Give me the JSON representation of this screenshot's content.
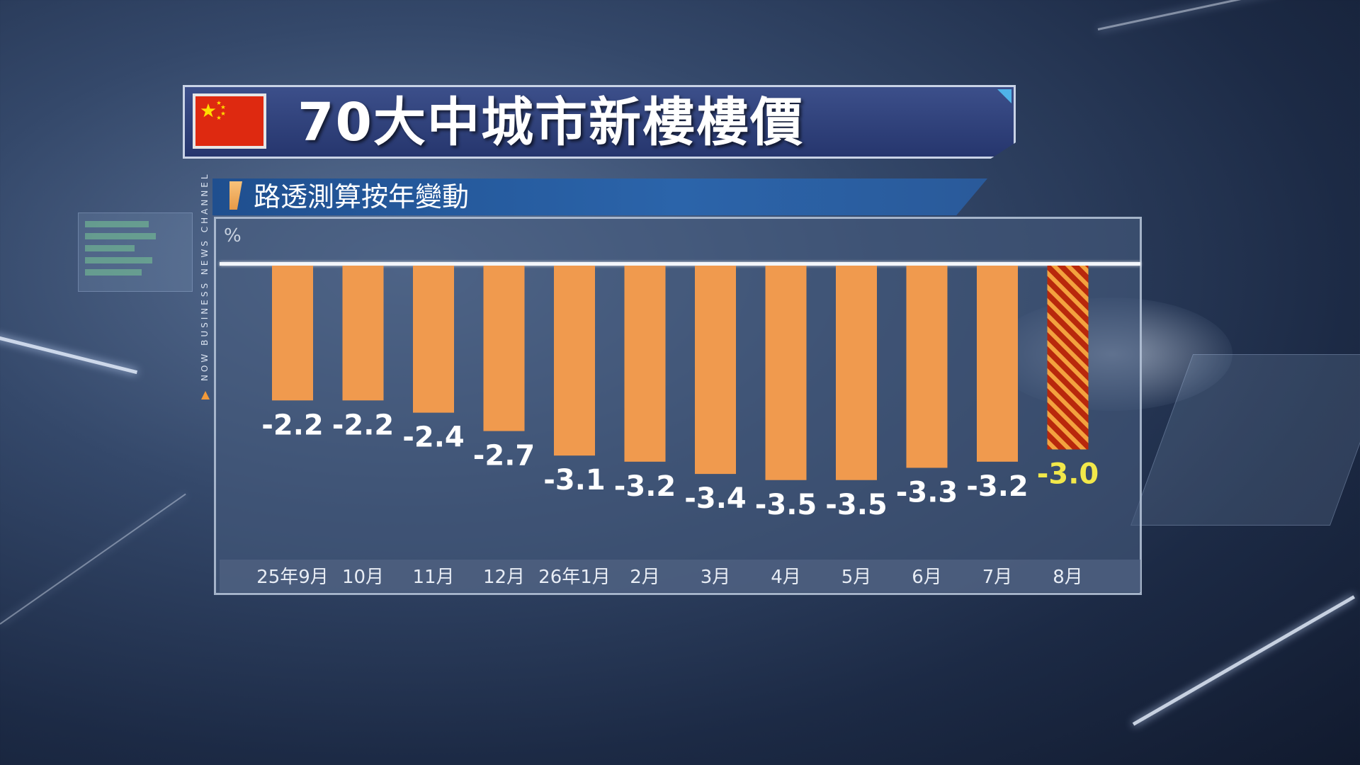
{
  "title": "70大中城市新樓樓價",
  "subtitle": "路透測算按年變動",
  "channel": "NOW BUSINESS NEWS CHANNEL",
  "colors": {
    "bar": "#f09a4e",
    "highlight_bar": "#b8280c",
    "highlight_stripe": "#f3a23e",
    "highlight_label": "#f2e84a"
  },
  "chart_data": {
    "type": "bar",
    "title": "70大中城市新樓樓價",
    "subtitle": "路透測算按年變動",
    "ylabel": "%",
    "xlabel": "",
    "categories": [
      "25年9月",
      "10月",
      "11月",
      "12月",
      "26年1月",
      "2月",
      "3月",
      "4月",
      "5月",
      "6月",
      "7月",
      "8月"
    ],
    "values": [
      -2.2,
      -2.2,
      -2.4,
      -2.7,
      -3.1,
      -3.2,
      -3.4,
      -3.5,
      -3.5,
      -3.3,
      -3.2,
      -3.0
    ],
    "value_labels": [
      "-2.2",
      "-2.2",
      "-2.4",
      "-2.7",
      "-3.1",
      "-3.2",
      "-3.4",
      "-3.5",
      "-3.5",
      "-3.3",
      "-3.2",
      "-3.0"
    ],
    "highlight_index": 11,
    "ylim": [
      -4,
      0
    ],
    "grid": false,
    "legend": "none"
  }
}
